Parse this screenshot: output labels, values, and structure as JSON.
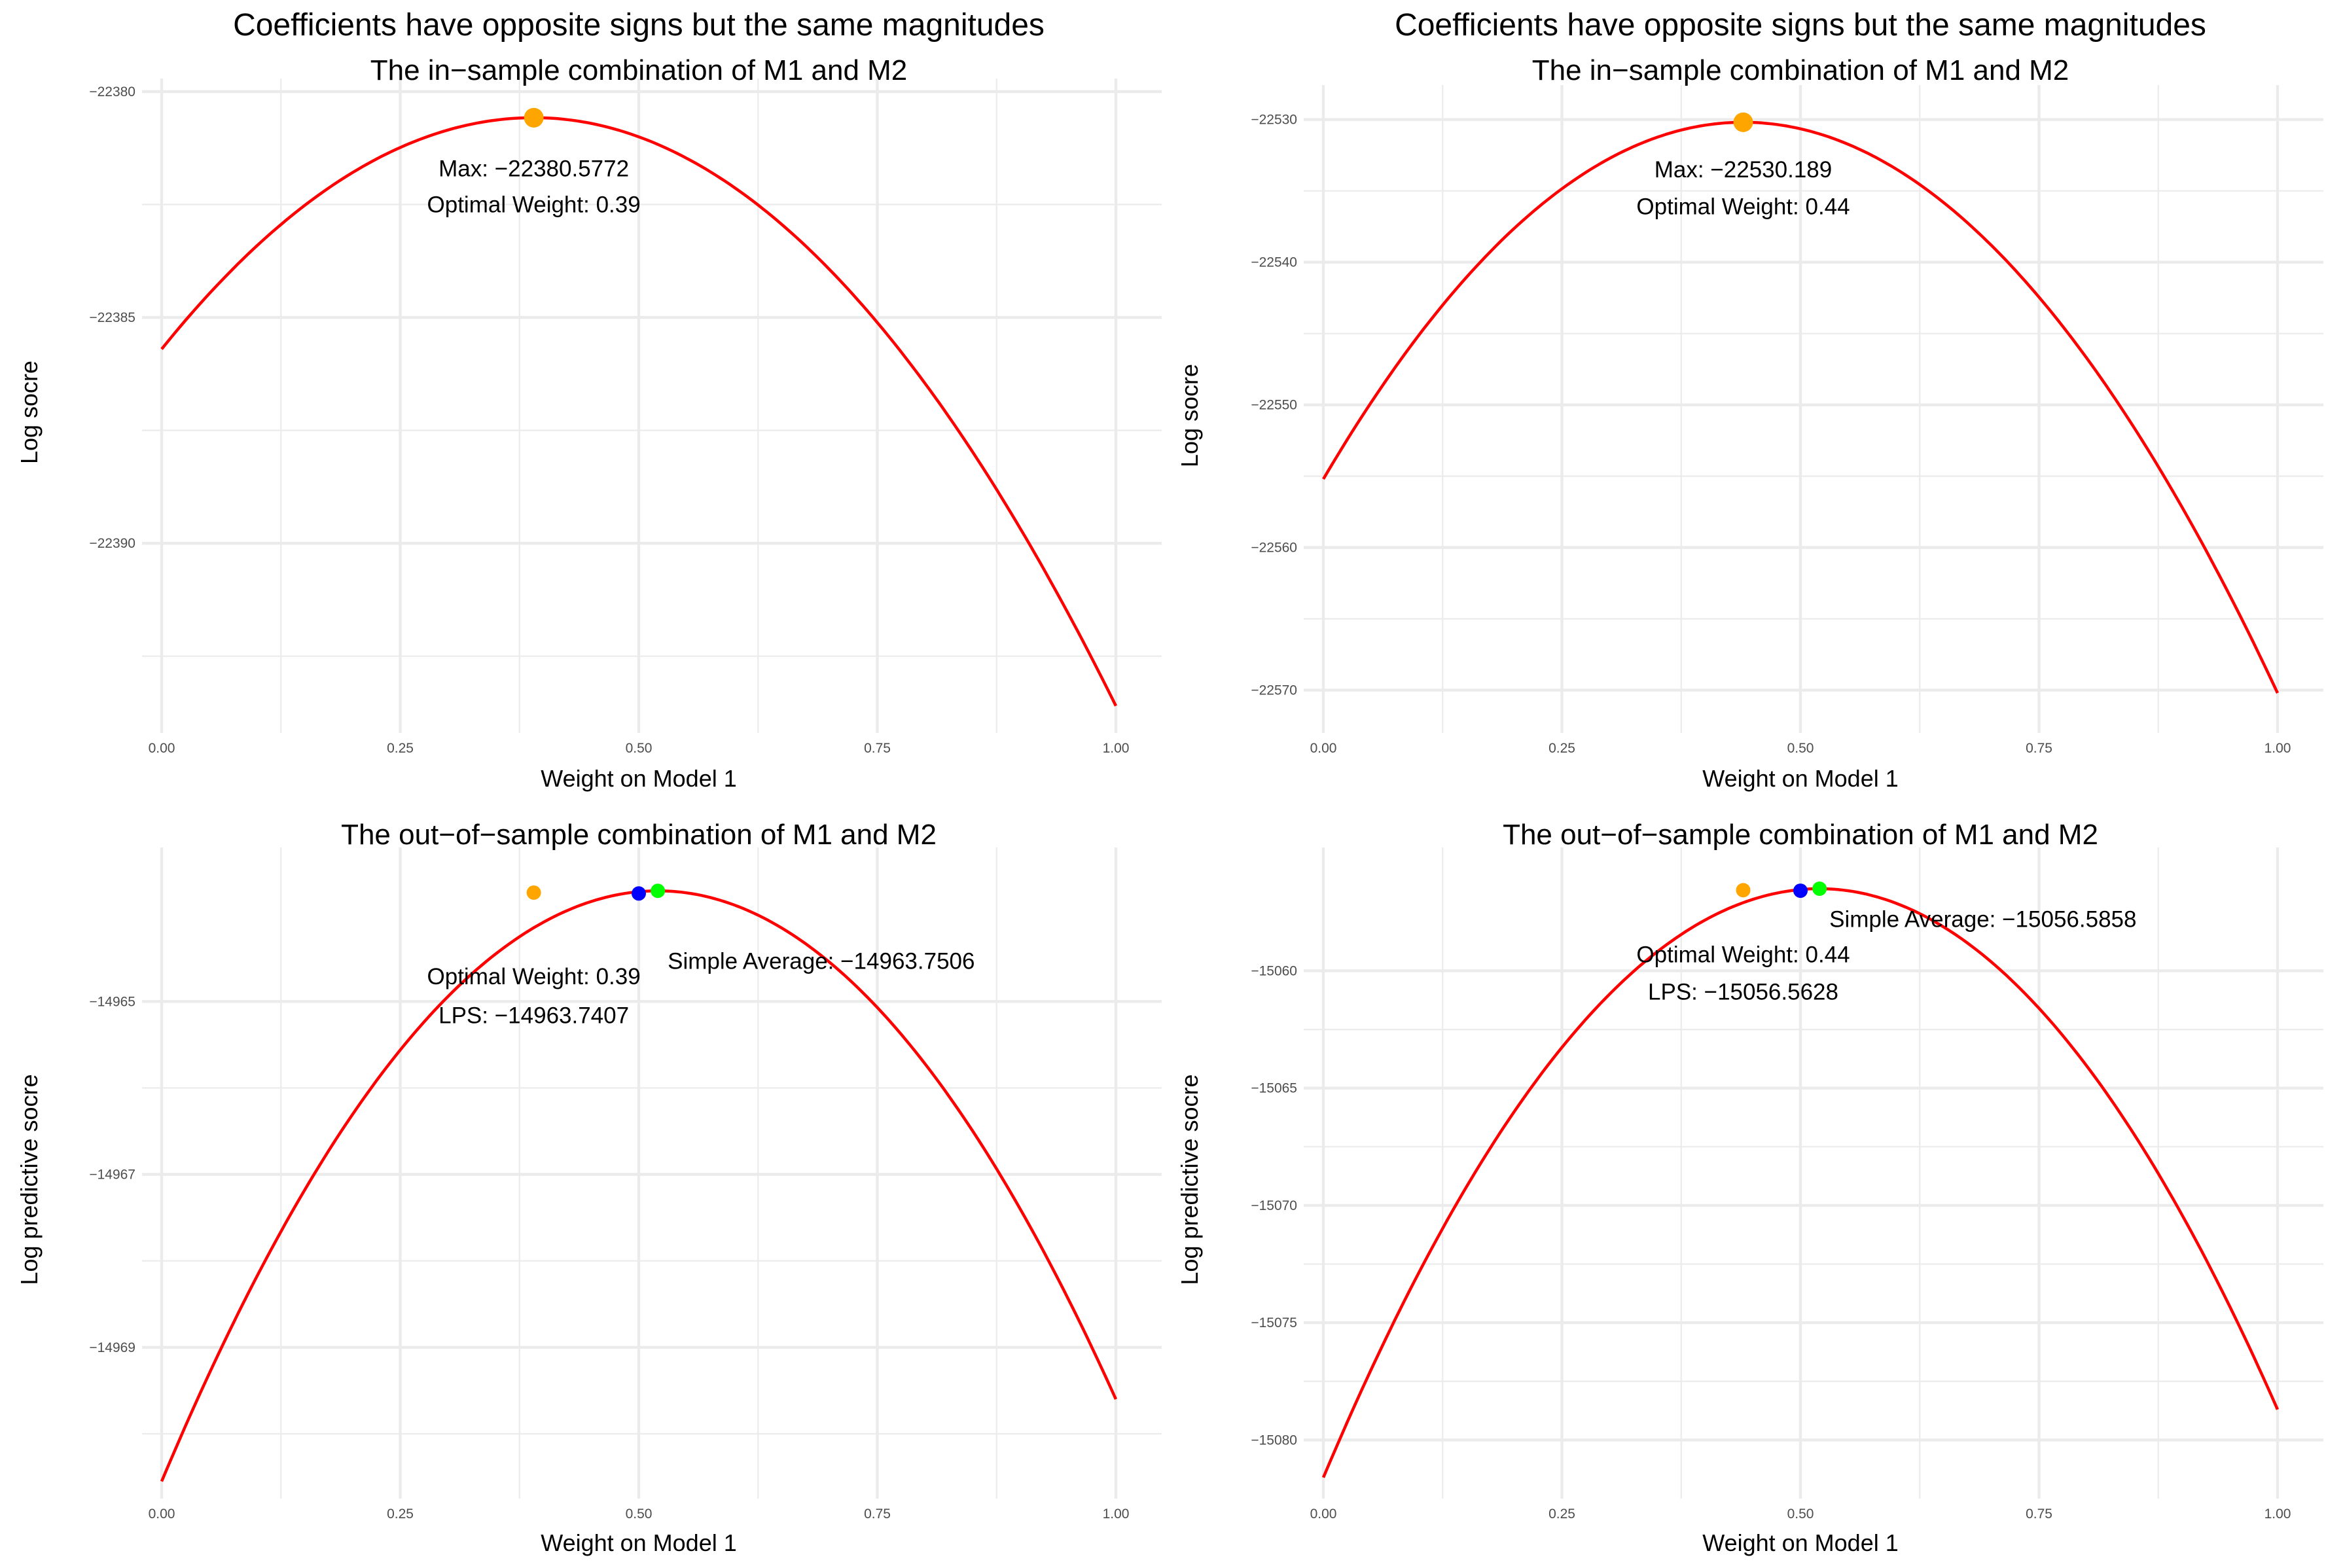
{
  "chart_data": [
    {
      "type": "line",
      "super_title": "Coefficients have opposite signs but the same magnitudes",
      "title": "The in−sample combination of M1 and M2",
      "xlabel": "Weight on Model 1",
      "ylabel": "Log socre",
      "xlim": [
        0,
        1
      ],
      "ylim": [
        -22394.2,
        -22380.0
      ],
      "xticks": [
        "0.00",
        "0.25",
        "0.50",
        "0.75",
        "1.00"
      ],
      "xtick_values": [
        0,
        0.25,
        0.5,
        0.75,
        1
      ],
      "yticks": [
        "−22380",
        "−22385",
        "−22390"
      ],
      "ytick_values": [
        -22380,
        -22385,
        -22390
      ],
      "series": [
        {
          "color": "#ff0000",
          "style": "quadratic",
          "x": [
            0.0,
            0.39,
            1.0
          ],
          "y": [
            -22385.7,
            -22380.5772,
            -22393.6
          ]
        }
      ],
      "points": [
        {
          "x": 0.39,
          "y": -22380.5772,
          "color": "#ffa500",
          "size": "large"
        }
      ],
      "annotations": [
        {
          "x": 0.39,
          "y": -22381.7,
          "text": "Max: −22380.5772"
        },
        {
          "x": 0.39,
          "y": -22382.5,
          "text": "Optimal Weight: 0.39"
        }
      ]
    },
    {
      "type": "line",
      "super_title": "Coefficients have opposite signs but the same magnitudes",
      "title": "The in−sample combination of M1 and M2",
      "xlabel": "Weight on Model 1",
      "ylabel": "Log socre",
      "xlim": [
        0,
        1
      ],
      "ylim": [
        -22573.0,
        -22528.5
      ],
      "xticks": [
        "0.00",
        "0.25",
        "0.50",
        "0.75",
        "1.00"
      ],
      "xtick_values": [
        0,
        0.25,
        0.5,
        0.75,
        1
      ],
      "yticks": [
        "−22530",
        "−22540",
        "−22550",
        "−22560",
        "−22570"
      ],
      "ytick_values": [
        -22530,
        -22540,
        -22550,
        -22560,
        -22570
      ],
      "series": [
        {
          "color": "#ff0000",
          "style": "quadratic",
          "x": [
            0.0,
            0.44,
            1.0
          ],
          "y": [
            -22555.2,
            -22530.189,
            -22570.2
          ]
        }
      ],
      "points": [
        {
          "x": 0.44,
          "y": -22530.189,
          "color": "#ffa500",
          "size": "large"
        }
      ],
      "annotations": [
        {
          "x": 0.44,
          "y": -22533.5,
          "text": "Max: −22530.189"
        },
        {
          "x": 0.44,
          "y": -22536.1,
          "text": "Optimal Weight: 0.44"
        }
      ]
    },
    {
      "type": "line",
      "title": "The out−of−sample combination of M1 and M2",
      "xlabel": "Weight on Model 1",
      "ylabel": "Log predictive socre",
      "xlim": [
        0,
        1
      ],
      "ylim": [
        -14970.75,
        -14963.37
      ],
      "xticks": [
        "0.00",
        "0.25",
        "0.50",
        "0.75",
        "1.00"
      ],
      "xtick_values": [
        0,
        0.25,
        0.5,
        0.75,
        1
      ],
      "yticks": [
        "−14965",
        "−14967",
        "−14969"
      ],
      "ytick_values": [
        -14965,
        -14967,
        -14969
      ],
      "series": [
        {
          "color": "#ff0000",
          "style": "quadratic",
          "x": [
            0.0,
            0.52,
            1.0
          ],
          "y": [
            -14970.55,
            -14963.72,
            -14969.6
          ]
        }
      ],
      "points": [
        {
          "x": 0.39,
          "y": -14963.7407,
          "color": "#ffa500",
          "size": "small"
        },
        {
          "x": 0.5,
          "y": -14963.7506,
          "color": "#0000ff",
          "size": "small"
        },
        {
          "x": 0.52,
          "y": -14963.72,
          "color": "#00ff00",
          "size": "small"
        }
      ],
      "annotations": [
        {
          "x": 0.7,
          "y": -14964.53,
          "text": "Simple Average: −14963.7506"
        },
        {
          "x": 0.39,
          "y": -14964.71,
          "text": "Optimal Weight: 0.39"
        },
        {
          "x": 0.39,
          "y": -14965.16,
          "text": "LPS: −14963.7407"
        }
      ]
    },
    {
      "type": "line",
      "title": "The out−of−sample combination of M1 and M2",
      "xlabel": "Weight on Model 1",
      "ylabel": "Log predictive socre",
      "xlim": [
        0,
        1
      ],
      "ylim": [
        -15082.5,
        -15055.3
      ],
      "xticks": [
        "0.00",
        "0.25",
        "0.50",
        "0.75",
        "1.00"
      ],
      "xtick_values": [
        0,
        0.25,
        0.5,
        0.75,
        1
      ],
      "yticks": [
        "−15060",
        "−15065",
        "−15070",
        "−15075",
        "−15080"
      ],
      "ytick_values": [
        -15060,
        -15065,
        -15070,
        -15075,
        -15080
      ],
      "series": [
        {
          "color": "#ff0000",
          "style": "quadratic",
          "x": [
            0.0,
            0.52,
            1.0
          ],
          "y": [
            -15081.6,
            -15056.5,
            -15078.7
          ]
        }
      ],
      "points": [
        {
          "x": 0.44,
          "y": -15056.5628,
          "color": "#ffa500",
          "size": "small"
        },
        {
          "x": 0.5,
          "y": -15056.5858,
          "color": "#0000ff",
          "size": "small"
        },
        {
          "x": 0.52,
          "y": -15056.5,
          "color": "#00ff00",
          "size": "small"
        }
      ],
      "annotations": [
        {
          "x": 0.7,
          "y": -15057.8,
          "text": "Simple Average: −15056.5858"
        },
        {
          "x": 0.44,
          "y": -15059.3,
          "text": "Optimal Weight: 0.44"
        },
        {
          "x": 0.44,
          "y": -15060.9,
          "text": "LPS: −15056.5628"
        }
      ]
    }
  ]
}
